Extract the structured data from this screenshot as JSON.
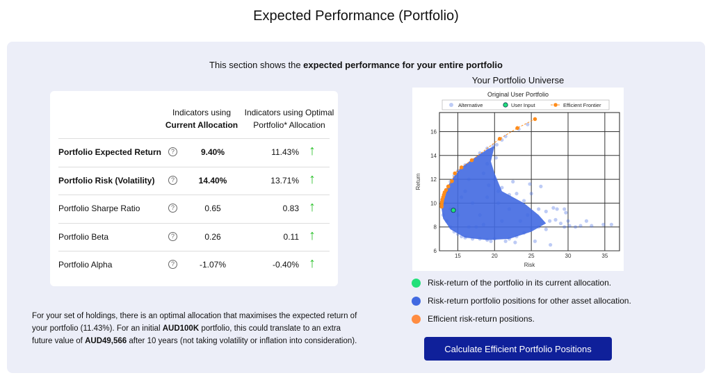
{
  "page": {
    "title": "Expected Performance (Portfolio)",
    "intro_prefix": "This section shows the ",
    "intro_bold": "expected performance for your entire portfolio"
  },
  "table": {
    "col1_line1": "Indicators using",
    "col1_line2": "Current Allocation",
    "col2_line1": "Indicators using Optimal",
    "col2_line2": "Portfolio* Allocation",
    "help_icon": "?",
    "trend_icon": "arrow-up",
    "rows": [
      {
        "label": "Portfolio Expected Return",
        "current": "9.40%",
        "optimal": "11.43%",
        "bold": true
      },
      {
        "label": "Portfolio Risk (Volatility)",
        "current": "14.40%",
        "optimal": "13.71%",
        "bold": true
      },
      {
        "label": "Portfolio Sharpe Ratio",
        "current": "0.65",
        "optimal": "0.83",
        "bold": false
      },
      {
        "label": "Portfolio Beta",
        "current": "0.26",
        "optimal": "0.11",
        "bold": false
      },
      {
        "label": "Portfolio Alpha",
        "current": "-1.07%",
        "optimal": "-0.40%",
        "bold": false
      }
    ]
  },
  "note": {
    "t1": "For your set of holdings, there is an optimal allocation that maximises the expected return of your portfolio (11.43%). For an initial ",
    "b1": "AUD100K",
    "t2": " portfolio, this could translate to an extra future value of ",
    "b2": "AUD49,566",
    "t3": " after 10 years (not taking volatility or inflation into consideration)."
  },
  "chart_section_title": "Your Portfolio Universe",
  "legend_items": [
    {
      "label": "Risk-return of the portfolio in its current allocation.",
      "color": "#22e07a"
    },
    {
      "label": "Risk-return portfolio positions for other asset allocation.",
      "color": "#4169e1"
    },
    {
      "label": "Efficient risk-return positions.",
      "color": "#ff8c42"
    }
  ],
  "button_label": "Calculate Efficient Portfolio Positions",
  "chart_data": {
    "type": "scatter",
    "title": "Original User Portfolio",
    "xlabel": "Risk",
    "ylabel": "Return",
    "xlim": [
      12.5,
      37
    ],
    "ylim": [
      6,
      17.6
    ],
    "xticks": [
      15,
      20,
      25,
      30,
      35
    ],
    "yticks": [
      6,
      8,
      10,
      12,
      14,
      16
    ],
    "grid": true,
    "legend": "top",
    "series": [
      {
        "name": "Alternative",
        "color": "#4169e1",
        "points": [
          [
            13,
            9
          ],
          [
            13.5,
            8.5
          ],
          [
            14,
            8
          ],
          [
            14.5,
            7.6
          ],
          [
            15,
            7.4
          ],
          [
            15.5,
            7.2
          ],
          [
            16,
            7.1
          ],
          [
            17,
            7
          ],
          [
            18,
            7
          ],
          [
            19,
            6.9
          ],
          [
            19.5,
            6.8
          ],
          [
            20,
            7
          ],
          [
            13.2,
            10
          ],
          [
            13.5,
            11
          ],
          [
            14,
            11.8
          ],
          [
            14.5,
            12.3
          ],
          [
            15,
            12.7
          ],
          [
            16,
            13.2
          ],
          [
            17,
            13.6
          ],
          [
            18,
            14.2
          ],
          [
            19,
            14.6
          ],
          [
            19.8,
            14.8
          ],
          [
            20.3,
            14.9
          ],
          [
            21,
            15.3
          ],
          [
            21.5,
            15.6
          ],
          [
            23.3,
            16.2
          ],
          [
            24.5,
            16.6
          ],
          [
            17,
            10
          ],
          [
            18,
            9
          ],
          [
            16,
            11
          ],
          [
            19,
            10.5
          ],
          [
            20,
            12
          ],
          [
            19,
            13.3
          ],
          [
            21,
            11.3
          ],
          [
            22,
            10.7
          ],
          [
            22.5,
            11.8
          ],
          [
            23,
            10.8
          ],
          [
            24,
            10.2
          ],
          [
            24.8,
            11.6
          ],
          [
            26.3,
            11.4
          ],
          [
            25,
            10.8
          ],
          [
            26,
            9.5
          ],
          [
            27,
            9.3
          ],
          [
            28,
            9.6
          ],
          [
            28.5,
            9.5
          ],
          [
            29.5,
            9.5
          ],
          [
            29.7,
            9.2
          ],
          [
            28.3,
            8.6
          ],
          [
            27.5,
            8.5
          ],
          [
            29,
            8.3
          ],
          [
            30,
            8.5
          ],
          [
            30.2,
            8.1
          ],
          [
            31,
            8
          ],
          [
            31.7,
            8.1
          ],
          [
            32.5,
            8.5
          ],
          [
            33.2,
            8.1
          ],
          [
            34.8,
            8.2
          ],
          [
            35.9,
            8.2
          ],
          [
            29.5,
            8
          ],
          [
            27,
            7.8
          ],
          [
            26,
            8
          ],
          [
            25,
            7.9
          ],
          [
            24,
            7.5
          ],
          [
            23,
            7.2
          ],
          [
            22,
            7
          ],
          [
            21.5,
            6.8
          ],
          [
            25.5,
            6.8
          ],
          [
            22.8,
            6.7
          ],
          [
            27.6,
            6.5
          ],
          [
            24.5,
            9
          ],
          [
            23.5,
            8.5
          ],
          [
            22,
            9.5
          ],
          [
            21,
            8.5
          ],
          [
            20.5,
            10
          ],
          [
            19.2,
            11.5
          ],
          [
            18.5,
            12.5
          ],
          [
            20.2,
            13.8
          ],
          [
            20.5,
            11
          ],
          [
            16.5,
            8
          ],
          [
            15,
            9
          ],
          [
            14,
            9.5
          ],
          [
            15.5,
            10.5
          ],
          [
            17.5,
            8
          ],
          [
            18.5,
            8.2
          ],
          [
            16.5,
            12
          ]
        ]
      },
      {
        "name": "User Input",
        "color": "#22e07a",
        "points": [
          [
            14.4,
            9.4
          ]
        ]
      },
      {
        "name": "Efficient Frontier",
        "color": "#ff8c1a",
        "points": [
          [
            12.8,
            9.7
          ],
          [
            12.8,
            9.9
          ],
          [
            12.85,
            10.1
          ],
          [
            12.9,
            10.3
          ],
          [
            13,
            10.5
          ],
          [
            13.1,
            10.7
          ],
          [
            13.2,
            10.9
          ],
          [
            13.4,
            11.1
          ],
          [
            13.7,
            11.4
          ],
          [
            14.2,
            11.85
          ],
          [
            14.6,
            12.5
          ],
          [
            15.5,
            13
          ],
          [
            16.9,
            13.6
          ],
          [
            20.7,
            15.4
          ],
          [
            23.1,
            16.3
          ],
          [
            25.5,
            17.05
          ]
        ]
      }
    ]
  }
}
